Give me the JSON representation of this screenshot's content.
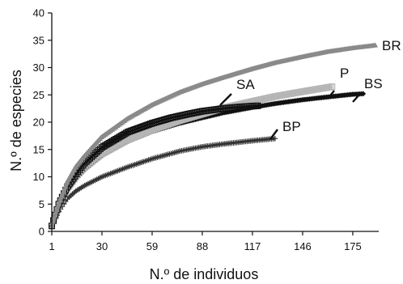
{
  "chart_data": {
    "type": "line",
    "title": "",
    "xlabel": "N.º de individuos",
    "ylabel": "N.º de especies",
    "xlim": [
      1,
      190
    ],
    "ylim": [
      0,
      40
    ],
    "x_ticks": [
      1,
      30,
      59,
      88,
      117,
      146,
      175
    ],
    "y_ticks": [
      0,
      5,
      10,
      15,
      20,
      25,
      30,
      35,
      40
    ],
    "grid": false,
    "legend": "inline labels",
    "series": [
      {
        "name": "BR",
        "color": "#8a8a8a",
        "marker": "triangle",
        "points": [
          [
            1,
            1
          ],
          [
            5,
            5
          ],
          [
            10,
            9
          ],
          [
            15,
            11.8
          ],
          [
            20,
            13.8
          ],
          [
            30,
            17.3
          ],
          [
            45,
            20.7
          ],
          [
            59,
            23.2
          ],
          [
            75,
            25.5
          ],
          [
            88,
            27
          ],
          [
            100,
            28.2
          ],
          [
            117,
            29.8
          ],
          [
            130,
            30.9
          ],
          [
            146,
            32
          ],
          [
            160,
            32.9
          ],
          [
            175,
            33.6
          ],
          [
            188,
            34.1
          ]
        ]
      },
      {
        "name": "P",
        "color": "#b5b5b5",
        "marker": "square",
        "points": [
          [
            1,
            1
          ],
          [
            5,
            4.5
          ],
          [
            10,
            7.8
          ],
          [
            15,
            10
          ],
          [
            20,
            11.7
          ],
          [
            30,
            14.2
          ],
          [
            45,
            16.8
          ],
          [
            59,
            18.6
          ],
          [
            75,
            20.3
          ],
          [
            88,
            21.5
          ],
          [
            100,
            22.6
          ],
          [
            117,
            23.8
          ],
          [
            130,
            24.7
          ],
          [
            146,
            25.6
          ],
          [
            163,
            26.5
          ]
        ]
      },
      {
        "name": "SA",
        "color": "#111111",
        "marker": "square",
        "points": [
          [
            1,
            1
          ],
          [
            5,
            5
          ],
          [
            10,
            8.2
          ],
          [
            15,
            10.5
          ],
          [
            20,
            12.5
          ],
          [
            30,
            15.4
          ],
          [
            45,
            18.2
          ],
          [
            59,
            19.8
          ],
          [
            70,
            20.8
          ],
          [
            80,
            21.5
          ],
          [
            88,
            22
          ],
          [
            100,
            22.5
          ],
          [
            110,
            22.8
          ],
          [
            120,
            23
          ]
        ]
      },
      {
        "name": "BS",
        "color": "#111111",
        "marker": "diamond",
        "points": [
          [
            1,
            1
          ],
          [
            5,
            4.5
          ],
          [
            10,
            7.5
          ],
          [
            15,
            9.6
          ],
          [
            20,
            11.3
          ],
          [
            30,
            13.9
          ],
          [
            45,
            16.5
          ],
          [
            59,
            18.3
          ],
          [
            75,
            19.8
          ],
          [
            88,
            20.8
          ],
          [
            100,
            21.7
          ],
          [
            117,
            22.7
          ],
          [
            130,
            23.4
          ],
          [
            146,
            24.1
          ],
          [
            160,
            24.6
          ],
          [
            175,
            25.1
          ],
          [
            181,
            25.2
          ]
        ]
      },
      {
        "name": "BP",
        "color": "#333333",
        "marker": "plus",
        "points": [
          [
            1,
            1
          ],
          [
            5,
            3.6
          ],
          [
            10,
            6
          ],
          [
            15,
            7.4
          ],
          [
            20,
            8.4
          ],
          [
            30,
            10
          ],
          [
            45,
            11.8
          ],
          [
            59,
            13.3
          ],
          [
            75,
            14.7
          ],
          [
            88,
            15.5
          ],
          [
            100,
            16
          ],
          [
            117,
            16.6
          ],
          [
            130,
            17
          ]
        ]
      }
    ]
  }
}
